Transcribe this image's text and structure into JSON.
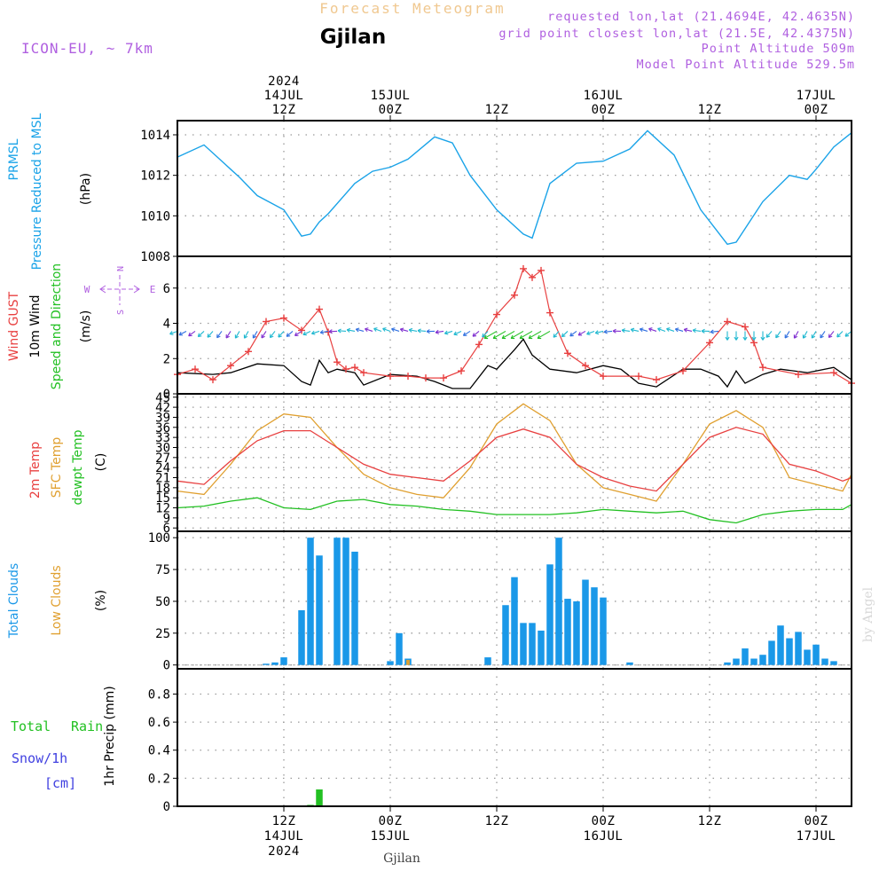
{
  "header": {
    "product": "Forecast Meteogram",
    "location": "Gjilan",
    "model": "ICON-EU, ~ 7km",
    "requested": "requested lon,lat (21.4694E, 42.4635N)",
    "grid_point": "grid point closest lon,lat (21.5E, 42.4375N)",
    "point_altitude": "Point Altitude 509m",
    "model_altitude": "Model Point Altitude 529.5m",
    "footer_location": "Gjilan",
    "watermark": "by Angel"
  },
  "time_axis": {
    "start": "2024-07-14T00:00Z",
    "end": "2024-07-17T04:00Z",
    "top_labels": [
      {
        "time": "2024-07-14T12:00Z",
        "lines": [
          "2024",
          "14JUL",
          "12Z"
        ]
      },
      {
        "time": "2024-07-15T00:00Z",
        "lines": [
          "15JUL",
          "00Z"
        ]
      },
      {
        "time": "2024-07-15T12:00Z",
        "lines": [
          "12Z"
        ]
      },
      {
        "time": "2024-07-16T00:00Z",
        "lines": [
          "16JUL",
          "00Z"
        ]
      },
      {
        "time": "2024-07-16T12:00Z",
        "lines": [
          "12Z"
        ]
      },
      {
        "time": "2024-07-17T00:00Z",
        "lines": [
          "17JUL",
          "00Z"
        ]
      }
    ],
    "bottom_labels": [
      {
        "time": "2024-07-14T12:00Z",
        "lines": [
          "12Z",
          "14JUL",
          "2024"
        ]
      },
      {
        "time": "2024-07-15T00:00Z",
        "lines": [
          "00Z",
          "15JUL"
        ]
      },
      {
        "time": "2024-07-15T12:00Z",
        "lines": [
          "12Z"
        ]
      },
      {
        "time": "2024-07-16T00:00Z",
        "lines": [
          "00Z",
          "16JUL"
        ]
      },
      {
        "time": "2024-07-16T12:00Z",
        "lines": [
          "12Z"
        ]
      },
      {
        "time": "2024-07-17T00:00Z",
        "lines": [
          "00Z",
          "17JUL"
        ]
      }
    ]
  },
  "colors": {
    "pressure": "#1aa3e8",
    "gust": "#e84040",
    "wind": "#000000",
    "wind_dir": "#22c022",
    "temp2m": "#e84040",
    "sfc_temp": "#e0a030",
    "dewpt": "#22c022",
    "total_clouds": "#1a98e8",
    "low_clouds": "#e0a030",
    "rain": "#22c022",
    "snow": "#4040e0",
    "product": "#f0c890",
    "meta": "#b060e0",
    "barb_cyan": "#20b8d0",
    "barb_blue": "#3070e0",
    "barb_purple": "#8030d0"
  },
  "chart_data": [
    {
      "type": "line",
      "panel": "pressure",
      "labels": [
        "PRMSL",
        "Pressure Reduced to MSL"
      ],
      "unit": "(hPa)",
      "ylim": [
        1008,
        1014.7
      ],
      "yticks": [
        1008,
        1010,
        1012,
        1014
      ],
      "series": [
        {
          "x": [
            "2024-07-14T00:00Z",
            "2024-07-14T03:00Z",
            "2024-07-14T06:00Z",
            "2024-07-14T07:00Z",
            "2024-07-14T09:00Z",
            "2024-07-14T12:00Z",
            "2024-07-14T14:00Z",
            "2024-07-14T15:00Z",
            "2024-07-14T16:00Z",
            "2024-07-14T17:00Z",
            "2024-07-14T20:00Z",
            "2024-07-14T22:00Z",
            "2024-07-15T00:00Z",
            "2024-07-15T02:00Z",
            "2024-07-15T05:00Z",
            "2024-07-15T07:00Z",
            "2024-07-15T09:00Z",
            "2024-07-15T12:00Z",
            "2024-07-15T15:00Z",
            "2024-07-15T16:00Z",
            "2024-07-15T18:00Z",
            "2024-07-15T21:00Z",
            "2024-07-16T00:00Z",
            "2024-07-16T03:00Z",
            "2024-07-16T05:00Z",
            "2024-07-16T08:00Z",
            "2024-07-16T11:00Z",
            "2024-07-16T14:00Z",
            "2024-07-16T15:00Z",
            "2024-07-16T18:00Z",
            "2024-07-16T21:00Z",
            "2024-07-16T23:00Z",
            "2024-07-17T00:00Z",
            "2024-07-17T02:00Z",
            "2024-07-17T04:00Z"
          ],
          "values": [
            1012.9,
            1013.5,
            1012.3,
            1011.9,
            1011.0,
            1010.3,
            1009.0,
            1009.1,
            1009.7,
            1010.1,
            1011.6,
            1012.2,
            1012.4,
            1012.8,
            1013.9,
            1013.6,
            1012.0,
            1010.3,
            1009.1,
            1008.9,
            1011.6,
            1012.6,
            1012.7,
            1013.3,
            1014.2,
            1013.0,
            1010.3,
            1008.6,
            1008.7,
            1010.7,
            1012.0,
            1011.8,
            1012.3,
            1013.4,
            1014.1
          ]
        }
      ]
    },
    {
      "type": "line",
      "panel": "wind",
      "labels": [
        "Wind GUST",
        "10m Wind",
        "Speed and Direction"
      ],
      "unit": "(m/s)",
      "compass": {
        "n": "N",
        "s": "S",
        "w": "W",
        "e": "E"
      },
      "ylim": [
        0,
        7.8
      ],
      "yticks": [
        0,
        2,
        4,
        6
      ],
      "gust": {
        "x": [
          "2024-07-14T00:00Z",
          "2024-07-14T02:00Z",
          "2024-07-14T04:00Z",
          "2024-07-14T06:00Z",
          "2024-07-14T08:00Z",
          "2024-07-14T10:00Z",
          "2024-07-14T12:00Z",
          "2024-07-14T14:00Z",
          "2024-07-14T16:00Z",
          "2024-07-14T17:00Z",
          "2024-07-14T18:00Z",
          "2024-07-14T19:00Z",
          "2024-07-14T20:00Z",
          "2024-07-14T21:00Z",
          "2024-07-15T00:00Z",
          "2024-07-15T02:00Z",
          "2024-07-15T04:00Z",
          "2024-07-15T06:00Z",
          "2024-07-15T08:00Z",
          "2024-07-15T10:00Z",
          "2024-07-15T12:00Z",
          "2024-07-15T14:00Z",
          "2024-07-15T15:00Z",
          "2024-07-15T16:00Z",
          "2024-07-15T17:00Z",
          "2024-07-15T18:00Z",
          "2024-07-15T20:00Z",
          "2024-07-15T22:00Z",
          "2024-07-16T00:00Z",
          "2024-07-16T04:00Z",
          "2024-07-16T06:00Z",
          "2024-07-16T09:00Z",
          "2024-07-16T12:00Z",
          "2024-07-16T14:00Z",
          "2024-07-16T16:00Z",
          "2024-07-16T17:00Z",
          "2024-07-16T18:00Z",
          "2024-07-16T22:00Z",
          "2024-07-17T02:00Z",
          "2024-07-17T04:00Z"
        ],
        "values": [
          1.1,
          1.4,
          0.8,
          1.6,
          2.4,
          4.1,
          4.3,
          3.6,
          4.8,
          3.5,
          1.8,
          1.4,
          1.5,
          1.2,
          1.0,
          1.0,
          0.9,
          0.9,
          1.3,
          2.8,
          4.5,
          5.6,
          7.1,
          6.6,
          7.0,
          4.6,
          2.3,
          1.6,
          1.0,
          1.0,
          0.8,
          1.3,
          2.9,
          4.1,
          3.8,
          2.9,
          1.5,
          1.1,
          1.2,
          0.6
        ]
      },
      "speed": {
        "x": [
          "2024-07-14T00:00Z",
          "2024-07-14T04:00Z",
          "2024-07-14T06:00Z",
          "2024-07-14T09:00Z",
          "2024-07-14T12:00Z",
          "2024-07-14T14:00Z",
          "2024-07-14T15:00Z",
          "2024-07-14T16:00Z",
          "2024-07-14T17:00Z",
          "2024-07-14T18:00Z",
          "2024-07-14T20:00Z",
          "2024-07-14T21:00Z",
          "2024-07-15T00:00Z",
          "2024-07-15T03:00Z",
          "2024-07-15T05:00Z",
          "2024-07-15T07:00Z",
          "2024-07-15T09:00Z",
          "2024-07-15T11:00Z",
          "2024-07-15T12:00Z",
          "2024-07-15T14:00Z",
          "2024-07-15T15:00Z",
          "2024-07-15T16:00Z",
          "2024-07-15T18:00Z",
          "2024-07-15T21:00Z",
          "2024-07-16T00:00Z",
          "2024-07-16T02:00Z",
          "2024-07-16T04:00Z",
          "2024-07-16T06:00Z",
          "2024-07-16T09:00Z",
          "2024-07-16T11:00Z",
          "2024-07-16T13:00Z",
          "2024-07-16T14:00Z",
          "2024-07-16T15:00Z",
          "2024-07-16T16:00Z",
          "2024-07-16T18:00Z",
          "2024-07-16T20:00Z",
          "2024-07-16T23:00Z",
          "2024-07-17T02:00Z",
          "2024-07-17T04:00Z"
        ],
        "values": [
          1.2,
          1.1,
          1.2,
          1.7,
          1.6,
          0.7,
          0.5,
          1.9,
          1.2,
          1.4,
          1.2,
          0.5,
          1.1,
          1.0,
          0.7,
          0.3,
          0.3,
          1.6,
          1.4,
          2.5,
          3.1,
          2.2,
          1.4,
          1.2,
          1.6,
          1.4,
          0.6,
          0.4,
          1.4,
          1.4,
          1.0,
          0.4,
          1.3,
          0.6,
          1.1,
          1.4,
          1.2,
          1.5,
          0.8
        ]
      }
    },
    {
      "type": "line",
      "panel": "temperature",
      "labels": [
        "2m Temp",
        "SFC Temp",
        "dewpt Temp"
      ],
      "unit": "(C)",
      "ylim": [
        5,
        46
      ],
      "yticks": [
        6,
        9,
        12,
        15,
        18,
        21,
        24,
        27,
        30,
        33,
        36,
        39,
        42,
        45
      ],
      "series": [
        {
          "name": "2m Temp",
          "x": [
            "2024-07-14T00:00Z",
            "2024-07-14T03:00Z",
            "2024-07-14T06:00Z",
            "2024-07-14T09:00Z",
            "2024-07-14T12:00Z",
            "2024-07-14T15:00Z",
            "2024-07-14T18:00Z",
            "2024-07-14T21:00Z",
            "2024-07-15T00:00Z",
            "2024-07-15T03:00Z",
            "2024-07-15T06:00Z",
            "2024-07-15T09:00Z",
            "2024-07-15T12:00Z",
            "2024-07-15T15:00Z",
            "2024-07-15T18:00Z",
            "2024-07-15T21:00Z",
            "2024-07-16T00:00Z",
            "2024-07-16T03:00Z",
            "2024-07-16T06:00Z",
            "2024-07-16T09:00Z",
            "2024-07-16T12:00Z",
            "2024-07-16T15:00Z",
            "2024-07-16T18:00Z",
            "2024-07-16T21:00Z",
            "2024-07-17T00:00Z",
            "2024-07-17T03:00Z",
            "2024-07-17T04:00Z"
          ],
          "values": [
            20,
            19,
            26,
            32,
            35,
            35,
            30,
            25,
            22,
            21,
            20,
            26,
            33,
            35.5,
            33,
            25,
            21,
            18.5,
            17,
            25,
            33,
            36,
            34,
            25,
            23,
            20,
            21
          ]
        },
        {
          "name": "SFC Temp",
          "x": [
            "2024-07-14T00:00Z",
            "2024-07-14T03:00Z",
            "2024-07-14T06:00Z",
            "2024-07-14T09:00Z",
            "2024-07-14T12:00Z",
            "2024-07-14T15:00Z",
            "2024-07-14T18:00Z",
            "2024-07-14T21:00Z",
            "2024-07-15T00:00Z",
            "2024-07-15T03:00Z",
            "2024-07-15T06:00Z",
            "2024-07-15T09:00Z",
            "2024-07-15T12:00Z",
            "2024-07-15T15:00Z",
            "2024-07-15T18:00Z",
            "2024-07-15T21:00Z",
            "2024-07-16T00:00Z",
            "2024-07-16T03:00Z",
            "2024-07-16T06:00Z",
            "2024-07-16T09:00Z",
            "2024-07-16T12:00Z",
            "2024-07-16T15:00Z",
            "2024-07-16T18:00Z",
            "2024-07-16T21:00Z",
            "2024-07-17T00:00Z",
            "2024-07-17T03:00Z",
            "2024-07-17T04:00Z"
          ],
          "values": [
            17,
            16,
            25,
            35,
            40,
            39,
            30,
            22,
            18,
            16,
            15,
            24,
            37,
            43,
            38,
            25,
            18,
            16,
            14,
            25,
            37,
            41,
            36,
            21,
            19,
            17,
            22
          ]
        },
        {
          "name": "dewpt Temp",
          "x": [
            "2024-07-14T00:00Z",
            "2024-07-14T03:00Z",
            "2024-07-14T06:00Z",
            "2024-07-14T09:00Z",
            "2024-07-14T12:00Z",
            "2024-07-14T15:00Z",
            "2024-07-14T18:00Z",
            "2024-07-14T21:00Z",
            "2024-07-15T00:00Z",
            "2024-07-15T03:00Z",
            "2024-07-15T06:00Z",
            "2024-07-15T09:00Z",
            "2024-07-15T12:00Z",
            "2024-07-15T15:00Z",
            "2024-07-15T18:00Z",
            "2024-07-15T21:00Z",
            "2024-07-16T00:00Z",
            "2024-07-16T03:00Z",
            "2024-07-16T06:00Z",
            "2024-07-16T09:00Z",
            "2024-07-16T12:00Z",
            "2024-07-16T15:00Z",
            "2024-07-16T18:00Z",
            "2024-07-16T21:00Z",
            "2024-07-17T00:00Z",
            "2024-07-17T03:00Z",
            "2024-07-17T04:00Z"
          ],
          "values": [
            12,
            12.5,
            14,
            15,
            12,
            11.5,
            14,
            14.5,
            13,
            12.5,
            11.5,
            11,
            10,
            10,
            10,
            10.5,
            11.5,
            11,
            10.5,
            11,
            8.5,
            7.5,
            10,
            11,
            11.5,
            11.5,
            13
          ]
        }
      ]
    },
    {
      "type": "bar",
      "panel": "clouds",
      "labels": [
        "Total Clouds",
        "Low Clouds"
      ],
      "unit": "(%)",
      "ylim": [
        -3,
        105
      ],
      "yticks": [
        0,
        25,
        50,
        75,
        100
      ],
      "series": [
        {
          "name": "Total Clouds",
          "x": [
            "2024-07-14T10:00Z",
            "2024-07-14T11:00Z",
            "2024-07-14T12:00Z",
            "2024-07-14T13:00Z",
            "2024-07-14T14:00Z",
            "2024-07-14T15:00Z",
            "2024-07-14T16:00Z",
            "2024-07-14T17:00Z",
            "2024-07-14T18:00Z",
            "2024-07-14T19:00Z",
            "2024-07-14T20:00Z",
            "2024-07-14T21:00Z",
            "2024-07-14T22:00Z",
            "2024-07-14T23:00Z",
            "2024-07-15T00:00Z",
            "2024-07-15T01:00Z",
            "2024-07-15T02:00Z",
            "2024-07-15T10:00Z",
            "2024-07-15T11:00Z",
            "2024-07-15T12:00Z",
            "2024-07-15T13:00Z",
            "2024-07-15T14:00Z",
            "2024-07-15T15:00Z",
            "2024-07-15T16:00Z",
            "2024-07-15T17:00Z",
            "2024-07-15T18:00Z",
            "2024-07-15T19:00Z",
            "2024-07-15T20:00Z",
            "2024-07-15T21:00Z",
            "2024-07-15T22:00Z",
            "2024-07-15T23:00Z",
            "2024-07-16T00:00Z",
            "2024-07-16T03:00Z",
            "2024-07-16T14:00Z",
            "2024-07-16T15:00Z",
            "2024-07-16T16:00Z",
            "2024-07-16T17:00Z",
            "2024-07-16T18:00Z",
            "2024-07-16T19:00Z",
            "2024-07-16T20:00Z",
            "2024-07-16T21:00Z",
            "2024-07-16T22:00Z",
            "2024-07-16T23:00Z",
            "2024-07-17T00:00Z",
            "2024-07-17T01:00Z",
            "2024-07-17T02:00Z",
            "2024-07-17T03:00Z"
          ],
          "values": [
            1,
            2,
            6,
            0,
            43,
            100,
            86,
            0,
            100,
            100,
            89,
            0,
            0,
            0,
            3,
            25,
            5,
            0,
            6,
            0,
            47,
            69,
            33,
            33,
            27,
            79,
            100,
            52,
            50,
            67,
            61,
            53,
            2,
            2,
            5,
            13,
            5,
            8,
            19,
            31,
            21,
            26,
            12,
            16,
            5,
            3,
            0
          ]
        },
        {
          "name": "Low Clouds",
          "x": [
            "2024-07-15T02:00Z"
          ],
          "values": [
            4
          ]
        }
      ]
    },
    {
      "type": "bar",
      "panel": "precip",
      "labels": [
        "Total",
        "Rain",
        "Snow/1h",
        "[cm]"
      ],
      "unit": "1hr Precip (mm)",
      "ylim": [
        0,
        0.98
      ],
      "yticks": [
        0,
        0.2,
        0.4,
        0.6,
        0.8
      ],
      "ytick_labels": [
        "0",
        "0.2",
        "0.4",
        "0.6",
        "0.8"
      ],
      "series": [
        {
          "name": "Total",
          "x": [
            "2024-07-14T15:00Z",
            "2024-07-14T16:00Z"
          ],
          "values": [
            0.01,
            0.12
          ]
        }
      ]
    }
  ]
}
